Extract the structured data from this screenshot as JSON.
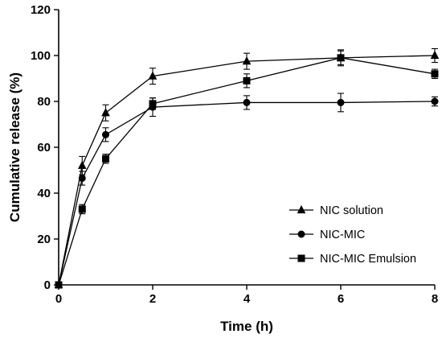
{
  "chart_data": {
    "type": "line",
    "xlabel": "Time (h)",
    "ylabel": "Cumulative release (%)",
    "xlim": [
      0,
      8
    ],
    "ylim": [
      0,
      120
    ],
    "xticks": [
      0,
      2,
      4,
      6,
      8
    ],
    "yticks": [
      0,
      20,
      40,
      60,
      80,
      100,
      120
    ],
    "grid": false,
    "legend_position": "bottom-right",
    "error_bars": true,
    "series": [
      {
        "name": "NIC solution",
        "marker": "triangle",
        "points": [
          {
            "x": 0,
            "y": 0,
            "err": 0
          },
          {
            "x": 0.5,
            "y": 52,
            "err": 4
          },
          {
            "x": 1,
            "y": 75,
            "err": 3.5
          },
          {
            "x": 2,
            "y": 91,
            "err": 3.5
          },
          {
            "x": 4,
            "y": 97.5,
            "err": 3.5
          },
          {
            "x": 6,
            "y": 99,
            "err": 3
          },
          {
            "x": 8,
            "y": 100,
            "err": 3
          }
        ]
      },
      {
        "name": "NIC-MIC",
        "marker": "circle",
        "points": [
          {
            "x": 0,
            "y": 0,
            "err": 0
          },
          {
            "x": 0.5,
            "y": 46.5,
            "err": 3
          },
          {
            "x": 1,
            "y": 65.5,
            "err": 3
          },
          {
            "x": 2,
            "y": 77.5,
            "err": 4
          },
          {
            "x": 4,
            "y": 79.5,
            "err": 3
          },
          {
            "x": 6,
            "y": 79.5,
            "err": 4
          },
          {
            "x": 8,
            "y": 80,
            "err": 2
          }
        ]
      },
      {
        "name": "NIC-MIC Emulsion",
        "marker": "square",
        "points": [
          {
            "x": 0,
            "y": 0,
            "err": 0
          },
          {
            "x": 0.5,
            "y": 33,
            "err": 2
          },
          {
            "x": 1,
            "y": 55,
            "err": 2
          },
          {
            "x": 2,
            "y": 79,
            "err": 2.5
          },
          {
            "x": 4,
            "y": 89,
            "err": 3
          },
          {
            "x": 6,
            "y": 99,
            "err": 3.5
          },
          {
            "x": 8,
            "y": 92,
            "err": 2
          }
        ]
      }
    ]
  }
}
